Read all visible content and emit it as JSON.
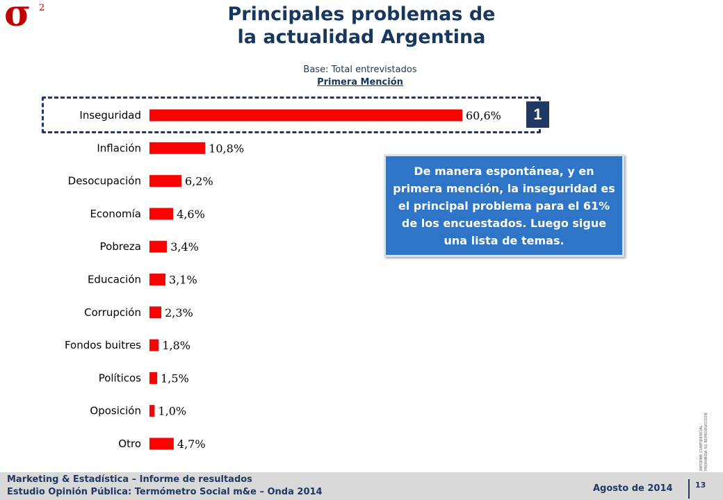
{
  "logo": {
    "symbol": "σ",
    "superscript": "2"
  },
  "header": {
    "title_line1": "Principales problemas de",
    "title_line2": "la actualidad Argentina",
    "base": "Base: Total entrevistados",
    "mention": "Primera Mención"
  },
  "highlight": {
    "badge": "1"
  },
  "callout": {
    "text": "De manera espontánea, y en primera mención, la inseguridad es el principal problema para el 61% de los encuestados. Luego sigue una lista de temas."
  },
  "side_note": {
    "line1": "INFORME CONFIDENCIAL",
    "line2": "PROHIBIDA SU REPRODUCCION"
  },
  "footer": {
    "line1": "Marketing & Estadística – Informe de resultados",
    "line2": "Estudio Opinión Pública: Termómetro Social m&e – Onda 2014",
    "date": "Agosto de 2014",
    "page": "13"
  },
  "colors": {
    "bar": "#ff0000",
    "title": "#17375e",
    "callout": "#2e75c8"
  },
  "chart_data": {
    "type": "bar",
    "orientation": "horizontal",
    "categories": [
      "Inseguridad",
      "Inflación",
      "Desocupación",
      "Economía",
      "Pobreza",
      "Educación",
      "Corrupción",
      "Fondos buitres",
      "Políticos",
      "Oposición",
      "Otro"
    ],
    "values": [
      60.6,
      10.8,
      6.2,
      4.6,
      3.4,
      3.1,
      2.3,
      1.8,
      1.5,
      1.0,
      4.7
    ],
    "labels": [
      "60,6%",
      "10,8%",
      "6,2%",
      "4,6%",
      "3,4%",
      "3,1%",
      "2,3%",
      "1,8%",
      "1,5%",
      "1,0%",
      "4,7%"
    ],
    "title": "",
    "xlabel": "",
    "ylabel": "",
    "xlim": [
      0,
      60.6
    ],
    "grid": false,
    "legend": "none"
  }
}
